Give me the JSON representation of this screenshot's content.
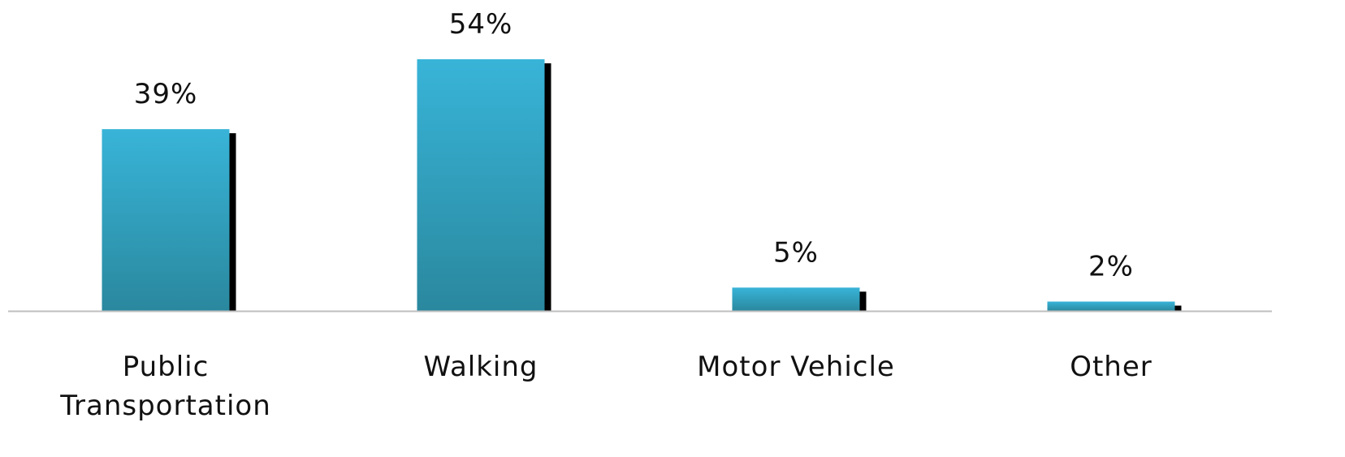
{
  "chart_data": {
    "type": "bar",
    "categories": [
      "Public Transportation",
      "Walking",
      "Motor Vehicle",
      "Other"
    ],
    "values": [
      39,
      54,
      5,
      2
    ],
    "value_labels": [
      "39%",
      "54%",
      "5%",
      "2%"
    ],
    "color": "#38b4d8"
  }
}
